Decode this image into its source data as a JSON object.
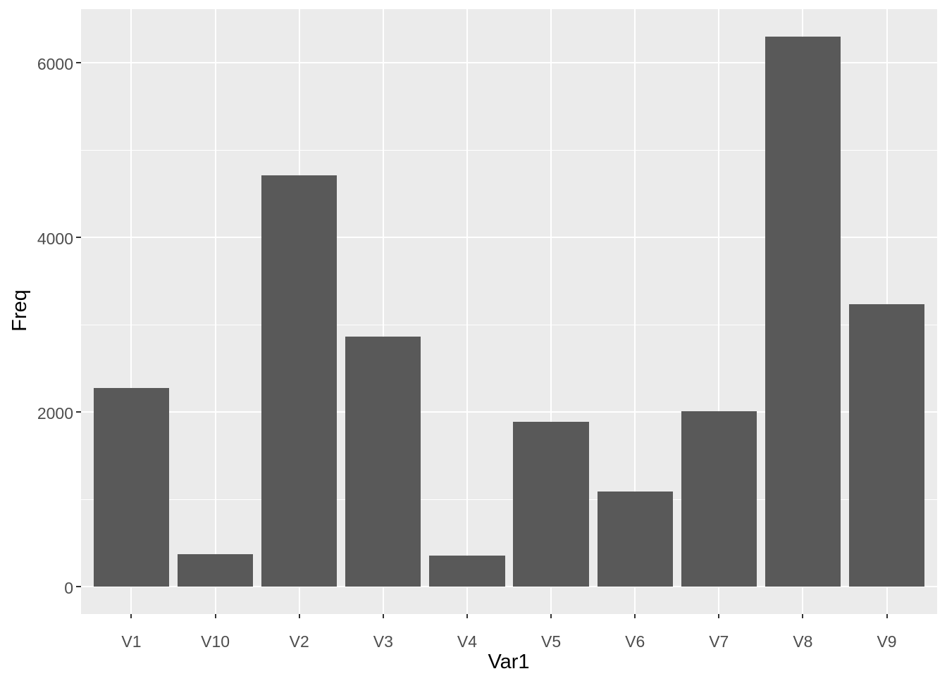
{
  "chart_data": {
    "type": "bar",
    "title": "",
    "xlabel": "Var1",
    "ylabel": "Freq",
    "categories": [
      "V1",
      "V10",
      "V2",
      "V3",
      "V4",
      "V5",
      "V6",
      "V7",
      "V8",
      "V9"
    ],
    "values": [
      2280,
      375,
      4710,
      2865,
      355,
      1890,
      1095,
      2010,
      6300,
      3240
    ],
    "y_major_ticks": [
      0,
      2000,
      4000,
      6000
    ],
    "y_tick_labels": [
      "0",
      "2000",
      "4000",
      "6000"
    ],
    "y_minor_ticks": [
      1000,
      3000,
      5000
    ],
    "ylim_panel": [
      -312,
      6615
    ],
    "bar_width_fraction": 0.9,
    "legend_position": "none",
    "grid": "horizontal major+minor, vertical major at category centers",
    "style": {
      "bar_color": "#595959",
      "panel_background": "#EBEBEB",
      "gridline_color": "#FFFFFF",
      "tick_label_color": "#4D4D4D",
      "tick_mark_color": "#333333",
      "axis_title_color": "#000000",
      "figure_background": "#FFFFFF"
    }
  }
}
